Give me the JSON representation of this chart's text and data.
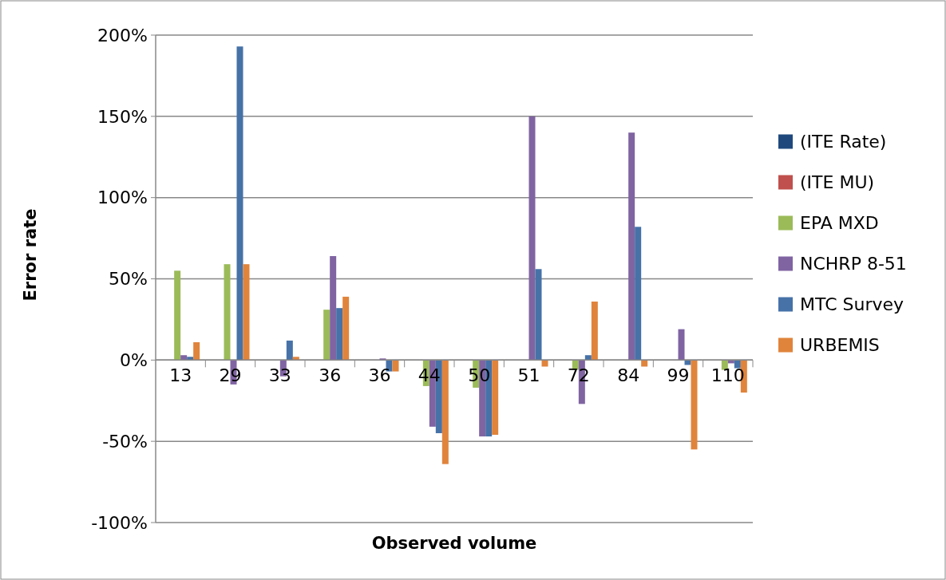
{
  "chart_data": {
    "type": "bar",
    "xlabel": "Observed volume",
    "ylabel": "Error rate",
    "categories": [
      "13",
      "29",
      "33",
      "36",
      "36",
      "44",
      "50",
      "51",
      "72",
      "84",
      "99",
      "110"
    ],
    "series": [
      {
        "name": "(ITE Rate)",
        "color": "#1f497d",
        "values": [
          null,
          null,
          null,
          null,
          null,
          null,
          null,
          null,
          null,
          null,
          null,
          null
        ]
      },
      {
        "name": "(ITE MU)",
        "color": "#c0504d",
        "values": [
          null,
          null,
          null,
          null,
          null,
          null,
          null,
          null,
          null,
          null,
          null,
          null
        ]
      },
      {
        "name": "EPA MXD",
        "color": "#9bbb59",
        "values": [
          55,
          59,
          null,
          31,
          null,
          -16,
          -17,
          null,
          -6,
          null,
          null,
          -6
        ]
      },
      {
        "name": "NCHRP 8-51",
        "color": "#8064a2",
        "values": [
          3,
          -15,
          -10,
          64,
          1,
          -41,
          -47,
          150,
          -27,
          140,
          19,
          -2
        ]
      },
      {
        "name": "MTC Survey",
        "color": "#4672a8",
        "values": [
          2,
          193,
          12,
          32,
          -7,
          -45,
          -47,
          56,
          3,
          82,
          -3,
          -5
        ]
      },
      {
        "name": "URBEMIS",
        "color": "#e0843c",
        "values": [
          11,
          59,
          2,
          39,
          -7,
          -64,
          -46,
          -4,
          36,
          -4,
          -55,
          -20
        ]
      }
    ],
    "ylim": [
      -100,
      200
    ],
    "yticks": [
      {
        "value": -100,
        "label": "-100%"
      },
      {
        "value": -50,
        "label": "-50%"
      },
      {
        "value": 0,
        "label": "0%"
      },
      {
        "value": 50,
        "label": "50%"
      },
      {
        "value": 100,
        "label": "100%"
      },
      {
        "value": 150,
        "label": "150%"
      },
      {
        "value": 200,
        "label": "200%"
      }
    ],
    "grid": "y",
    "legend": "right"
  }
}
